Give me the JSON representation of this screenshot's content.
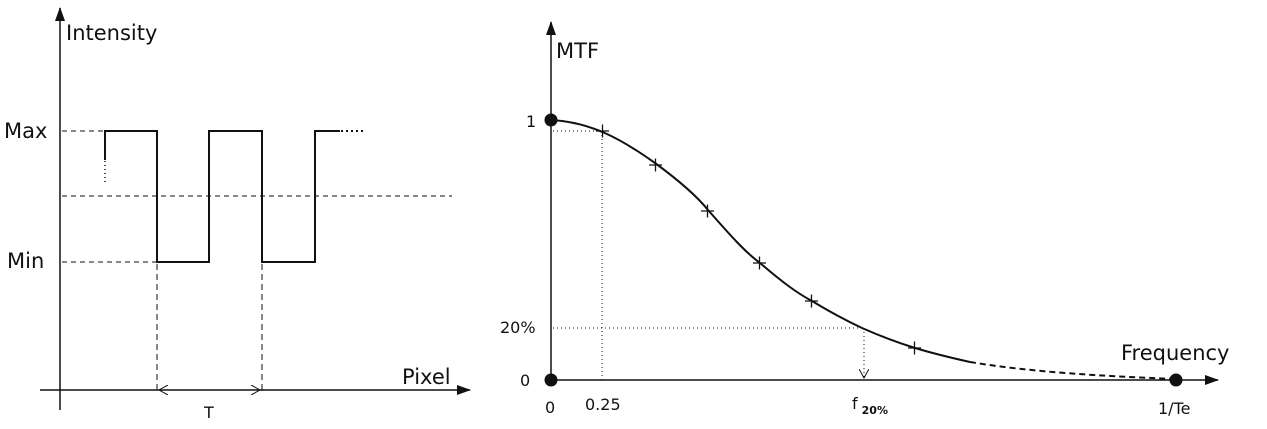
{
  "left_diagram": {
    "y_axis_label": "Intensity",
    "x_axis_label": "Pixel",
    "max_label": "Max",
    "min_label": "Min",
    "period_label": "T"
  },
  "right_diagram": {
    "y_axis_label": "MTF",
    "x_axis_label": "Frequency",
    "y_tick_1": "1",
    "y_tick_20": "20%",
    "y_tick_0": "0",
    "x_tick_0": "0",
    "x_tick_025": "0.25",
    "x_tick_f20_main": "f",
    "x_tick_f20_sub": "20%",
    "x_tick_end": "1/Te"
  }
}
